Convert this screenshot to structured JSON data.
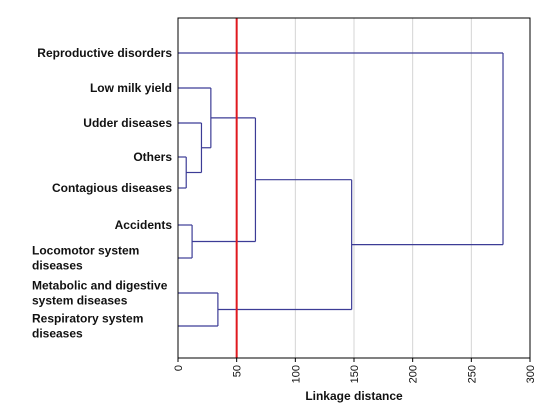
{
  "chart_data": {
    "type": "dendrogram",
    "xlabel": "Linkage distance",
    "xlim": [
      0,
      300
    ],
    "xticks": [
      0,
      50,
      100,
      150,
      200,
      250,
      300
    ],
    "grid": "vertical",
    "cutoff_line": {
      "value": 50,
      "color": "#e0191f"
    },
    "colors": {
      "tree": "#3c3c96",
      "grid": "#d4d4d4",
      "frame": "#000000"
    },
    "leaves": [
      {
        "lines": [
          "Reproductive disorders"
        ]
      },
      {
        "lines": [
          "Low milk yield"
        ]
      },
      {
        "lines": [
          "Udder diseases"
        ]
      },
      {
        "lines": [
          "Others"
        ]
      },
      {
        "lines": [
          "Contagious diseases"
        ]
      },
      {
        "lines": [
          "Accidents"
        ]
      },
      {
        "lines": [
          "Locomotor system",
          "diseases"
        ]
      },
      {
        "lines": [
          "Metabolic and digestive",
          "system diseases"
        ]
      },
      {
        "lines": [
          "Respiratory system",
          "diseases"
        ]
      }
    ],
    "merges": [
      {
        "a": 3,
        "b": 4,
        "distance": 7
      },
      {
        "a": 2,
        "b": 9,
        "distance": 20
      },
      {
        "a": 1,
        "b": 10,
        "distance": 28
      },
      {
        "a": 5,
        "b": 6,
        "distance": 12
      },
      {
        "a": 11,
        "b": 12,
        "distance": 66
      },
      {
        "a": 7,
        "b": 8,
        "distance": 34
      },
      {
        "a": 13,
        "b": 14,
        "distance": 148
      },
      {
        "a": 0,
        "b": 15,
        "distance": 277
      }
    ]
  }
}
